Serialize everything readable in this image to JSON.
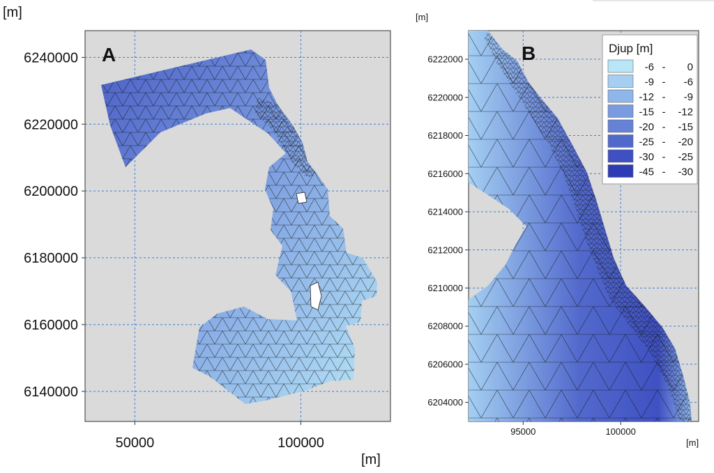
{
  "panel_a": {
    "letter": "A",
    "y_unit": "[m]",
    "x_unit": "[m]",
    "y_ticks": [
      6240000,
      6220000,
      6200000,
      6180000,
      6160000,
      6140000
    ],
    "x_ticks": [
      50000,
      100000
    ],
    "x_range": [
      35000,
      127000
    ],
    "y_range": [
      6131000,
      6248000
    ]
  },
  "panel_b": {
    "letter": "B",
    "y_unit": "[m]",
    "x_unit": "[m]",
    "y_ticks": [
      6222000,
      6220000,
      6218000,
      6216000,
      6214000,
      6212000,
      6210000,
      6208000,
      6206000,
      6204000
    ],
    "x_ticks": [
      95000,
      100000
    ],
    "x_range": [
      92200,
      104000
    ],
    "y_range": [
      6203000,
      6223500
    ]
  },
  "legend": {
    "title": "Djup [m]",
    "entries": [
      {
        "low": "-6",
        "high": "0",
        "color": "#b8e6f7"
      },
      {
        "low": "-9",
        "high": "-6",
        "color": "#a4cff2"
      },
      {
        "low": "-12",
        "high": "-9",
        "color": "#8fb6ea"
      },
      {
        "low": "-15",
        "high": "-12",
        "color": "#7a9be0"
      },
      {
        "low": "-20",
        "high": "-15",
        "color": "#6682d6"
      },
      {
        "low": "-25",
        "high": "-20",
        "color": "#5269cc"
      },
      {
        "low": "-30",
        "high": "-25",
        "color": "#3f51c2"
      },
      {
        "low": "-45",
        "high": "-30",
        "color": "#2d3bb4"
      }
    ]
  },
  "colors": {
    "plot_background": "#dadada",
    "grid": "#3a7fd5",
    "land": "#d8d8d8"
  }
}
